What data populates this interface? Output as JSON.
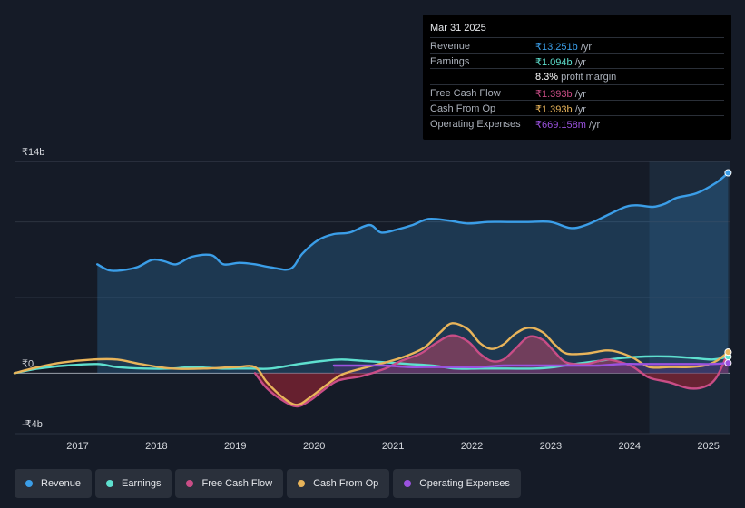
{
  "chart_data": {
    "type": "area",
    "title": "",
    "xlabel": "",
    "ylabel": "",
    "y_tick_labels": [
      "₹14b",
      "₹0",
      "-₹4b"
    ],
    "y_ticks": [
      14,
      0,
      -4
    ],
    "ylim": [
      -4,
      14
    ],
    "xlim": [
      2016.2,
      2025.28
    ],
    "x_tick_labels": [
      "2017",
      "2018",
      "2019",
      "2020",
      "2021",
      "2022",
      "2023",
      "2024",
      "2025"
    ],
    "x_ticks": [
      2017,
      2018,
      2019,
      2020,
      2021,
      2022,
      2023,
      2024,
      2025
    ],
    "highlight_from": 2024.25,
    "series": [
      {
        "name": "Revenue",
        "color": "#3b9ee8",
        "fill": true,
        "points": [
          [
            2017.25,
            7.2
          ],
          [
            2017.4,
            6.8
          ],
          [
            2017.55,
            6.8
          ],
          [
            2017.75,
            7.0
          ],
          [
            2017.95,
            7.5
          ],
          [
            2018.1,
            7.4
          ],
          [
            2018.25,
            7.2
          ],
          [
            2018.45,
            7.7
          ],
          [
            2018.7,
            7.8
          ],
          [
            2018.85,
            7.2
          ],
          [
            2019.05,
            7.3
          ],
          [
            2019.25,
            7.2
          ],
          [
            2019.45,
            7.0
          ],
          [
            2019.7,
            6.9
          ],
          [
            2019.85,
            7.9
          ],
          [
            2020.05,
            8.8
          ],
          [
            2020.25,
            9.2
          ],
          [
            2020.45,
            9.3
          ],
          [
            2020.7,
            9.8
          ],
          [
            2020.85,
            9.3
          ],
          [
            2021.05,
            9.5
          ],
          [
            2021.25,
            9.8
          ],
          [
            2021.45,
            10.2
          ],
          [
            2021.7,
            10.1
          ],
          [
            2021.95,
            9.9
          ],
          [
            2022.2,
            10.0
          ],
          [
            2022.45,
            10.0
          ],
          [
            2022.7,
            10.0
          ],
          [
            2023.0,
            10.0
          ],
          [
            2023.25,
            9.6
          ],
          [
            2023.45,
            9.8
          ],
          [
            2023.7,
            10.4
          ],
          [
            2023.95,
            11.0
          ],
          [
            2024.1,
            11.1
          ],
          [
            2024.3,
            11.0
          ],
          [
            2024.45,
            11.2
          ],
          [
            2024.6,
            11.6
          ],
          [
            2024.85,
            11.9
          ],
          [
            2025.1,
            12.6
          ],
          [
            2025.25,
            13.25
          ]
        ]
      },
      {
        "name": "Earnings",
        "color": "#5ee0cf",
        "fill": false,
        "points": [
          [
            2016.2,
            0.0
          ],
          [
            2016.5,
            0.3
          ],
          [
            2016.85,
            0.5
          ],
          [
            2017.25,
            0.6
          ],
          [
            2017.5,
            0.4
          ],
          [
            2017.85,
            0.3
          ],
          [
            2018.2,
            0.3
          ],
          [
            2018.45,
            0.4
          ],
          [
            2018.8,
            0.3
          ],
          [
            2019.0,
            0.3
          ],
          [
            2019.2,
            0.3
          ],
          [
            2019.45,
            0.3
          ],
          [
            2019.8,
            0.6
          ],
          [
            2020.1,
            0.8
          ],
          [
            2020.35,
            0.9
          ],
          [
            2020.65,
            0.8
          ],
          [
            2020.95,
            0.7
          ],
          [
            2021.2,
            0.6
          ],
          [
            2021.5,
            0.5
          ],
          [
            2021.8,
            0.3
          ],
          [
            2022.1,
            0.3
          ],
          [
            2022.45,
            0.3
          ],
          [
            2022.8,
            0.3
          ],
          [
            2023.05,
            0.4
          ],
          [
            2023.3,
            0.6
          ],
          [
            2023.6,
            0.8
          ],
          [
            2023.9,
            1.0
          ],
          [
            2024.2,
            1.1
          ],
          [
            2024.5,
            1.1
          ],
          [
            2024.8,
            1.0
          ],
          [
            2025.05,
            0.9
          ],
          [
            2025.25,
            1.09
          ]
        ]
      },
      {
        "name": "Free Cash Flow",
        "color": "#c94d86",
        "fill": true,
        "fill_neg": "#7a2232",
        "fill_pos": "#8e4060",
        "points": [
          [
            2019.25,
            0.0
          ],
          [
            2019.4,
            -1.0
          ],
          [
            2019.6,
            -1.8
          ],
          [
            2019.78,
            -2.2
          ],
          [
            2019.95,
            -1.8
          ],
          [
            2020.1,
            -1.2
          ],
          [
            2020.3,
            -0.5
          ],
          [
            2020.6,
            -0.2
          ],
          [
            2020.9,
            0.3
          ],
          [
            2021.1,
            0.8
          ],
          [
            2021.35,
            1.3
          ],
          [
            2021.55,
            2.0
          ],
          [
            2021.75,
            2.5
          ],
          [
            2021.95,
            2.1
          ],
          [
            2022.1,
            1.3
          ],
          [
            2022.25,
            0.8
          ],
          [
            2022.4,
            0.9
          ],
          [
            2022.55,
            1.6
          ],
          [
            2022.72,
            2.4
          ],
          [
            2022.9,
            2.2
          ],
          [
            2023.05,
            1.4
          ],
          [
            2023.2,
            0.7
          ],
          [
            2023.45,
            0.6
          ],
          [
            2023.7,
            0.9
          ],
          [
            2023.9,
            0.7
          ],
          [
            2024.05,
            0.4
          ],
          [
            2024.25,
            -0.3
          ],
          [
            2024.5,
            -0.6
          ],
          [
            2024.75,
            -1.0
          ],
          [
            2024.95,
            -0.9
          ],
          [
            2025.1,
            -0.3
          ],
          [
            2025.25,
            1.39
          ]
        ]
      },
      {
        "name": "Cash From Op",
        "color": "#e8b45a",
        "fill": false,
        "points": [
          [
            2016.2,
            0.0
          ],
          [
            2016.5,
            0.4
          ],
          [
            2016.8,
            0.7
          ],
          [
            2017.2,
            0.9
          ],
          [
            2017.5,
            0.9
          ],
          [
            2017.8,
            0.6
          ],
          [
            2018.2,
            0.3
          ],
          [
            2018.6,
            0.3
          ],
          [
            2019.0,
            0.4
          ],
          [
            2019.25,
            0.4
          ],
          [
            2019.4,
            -0.6
          ],
          [
            2019.6,
            -1.6
          ],
          [
            2019.78,
            -2.1
          ],
          [
            2019.95,
            -1.6
          ],
          [
            2020.15,
            -0.8
          ],
          [
            2020.35,
            -0.1
          ],
          [
            2020.6,
            0.3
          ],
          [
            2020.9,
            0.7
          ],
          [
            2021.15,
            1.1
          ],
          [
            2021.4,
            1.7
          ],
          [
            2021.6,
            2.7
          ],
          [
            2021.75,
            3.3
          ],
          [
            2021.95,
            2.9
          ],
          [
            2022.1,
            2.0
          ],
          [
            2022.25,
            1.6
          ],
          [
            2022.4,
            1.9
          ],
          [
            2022.55,
            2.6
          ],
          [
            2022.72,
            3.0
          ],
          [
            2022.9,
            2.7
          ],
          [
            2023.05,
            1.9
          ],
          [
            2023.2,
            1.3
          ],
          [
            2023.45,
            1.3
          ],
          [
            2023.7,
            1.5
          ],
          [
            2023.85,
            1.4
          ],
          [
            2024.05,
            1.0
          ],
          [
            2024.25,
            0.4
          ],
          [
            2024.5,
            0.4
          ],
          [
            2024.75,
            0.4
          ],
          [
            2024.95,
            0.5
          ],
          [
            2025.1,
            0.8
          ],
          [
            2025.25,
            1.39
          ]
        ]
      },
      {
        "name": "Operating Expenses",
        "color": "#9b52e0",
        "fill": true,
        "fill_pos": "#4a3270",
        "points": [
          [
            2020.25,
            0.5
          ],
          [
            2020.6,
            0.5
          ],
          [
            2020.9,
            0.5
          ],
          [
            2021.2,
            0.4
          ],
          [
            2021.5,
            0.4
          ],
          [
            2021.8,
            0.4
          ],
          [
            2022.1,
            0.4
          ],
          [
            2022.4,
            0.5
          ],
          [
            2022.7,
            0.5
          ],
          [
            2023.0,
            0.5
          ],
          [
            2023.3,
            0.5
          ],
          [
            2023.6,
            0.5
          ],
          [
            2023.9,
            0.6
          ],
          [
            2024.2,
            0.6
          ],
          [
            2024.5,
            0.6
          ],
          [
            2024.8,
            0.6
          ],
          [
            2025.05,
            0.6
          ],
          [
            2025.25,
            0.67
          ]
        ]
      }
    ]
  },
  "tooltip": {
    "date": "Mar 31 2025",
    "rows": [
      {
        "label": "Revenue",
        "value": "₹13.251b",
        "suffix": " /yr",
        "color": "#3b9ee8"
      },
      {
        "label": "Earnings",
        "value": "₹1.094b",
        "suffix": " /yr",
        "color": "#5ee0cf"
      },
      {
        "label": "",
        "value": "8.3%",
        "suffix": " profit margin",
        "color": "#ffffff"
      },
      {
        "label": "Free Cash Flow",
        "value": "₹1.393b",
        "suffix": " /yr",
        "color": "#c94d86"
      },
      {
        "label": "Cash From Op",
        "value": "₹1.393b",
        "suffix": " /yr",
        "color": "#e8b45a"
      },
      {
        "label": "Operating Expenses",
        "value": "₹669.158m",
        "suffix": " /yr",
        "color": "#9b52e0"
      }
    ]
  },
  "legend": [
    {
      "label": "Revenue",
      "color": "#3b9ee8"
    },
    {
      "label": "Earnings",
      "color": "#5ee0cf"
    },
    {
      "label": "Free Cash Flow",
      "color": "#c94d86"
    },
    {
      "label": "Cash From Op",
      "color": "#e8b45a"
    },
    {
      "label": "Operating Expenses",
      "color": "#9b52e0"
    }
  ]
}
